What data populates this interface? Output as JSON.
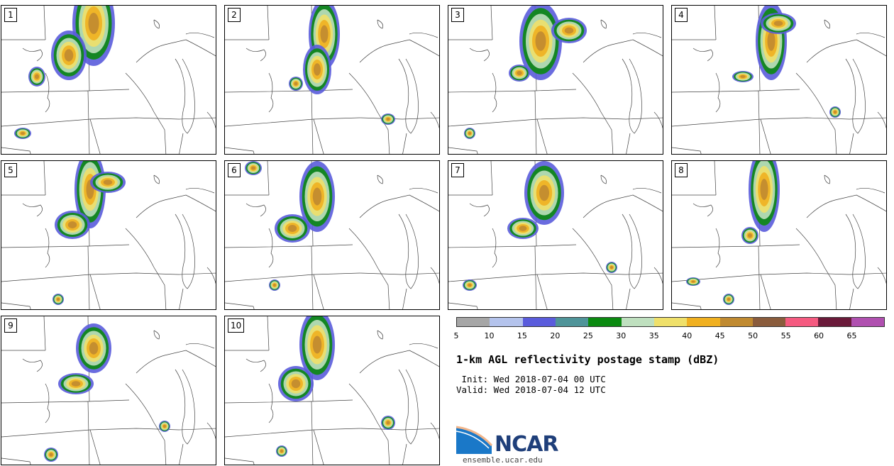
{
  "panels": [
    {
      "label": "1"
    },
    {
      "label": "2"
    },
    {
      "label": "3"
    },
    {
      "label": "4"
    },
    {
      "label": "5"
    },
    {
      "label": "6"
    },
    {
      "label": "7"
    },
    {
      "label": "8"
    },
    {
      "label": "9"
    },
    {
      "label": "10"
    }
  ],
  "colorbar": {
    "ticks": [
      "5",
      "10",
      "15",
      "20",
      "25",
      "30",
      "35",
      "40",
      "45",
      "50",
      "55",
      "60",
      "65"
    ],
    "colors": [
      "#a6a6a6",
      "#b4c3ec",
      "#5a5cdc",
      "#4f9499",
      "#0b8a10",
      "#bfe0bf",
      "#efe06a",
      "#f0b020",
      "#c08a30",
      "#8a5c3c",
      "#f55a80",
      "#6a1a3a",
      "#b050b0"
    ]
  },
  "title": "1-km AGL reflectivity postage stamp (dBZ)",
  "init": " Init: Wed 2018-07-04 00 UTC",
  "valid": "Valid: Wed 2018-07-04 12 UTC",
  "logo": {
    "text": "NCAR",
    "url": "ensemble.ucar.edu"
  }
}
